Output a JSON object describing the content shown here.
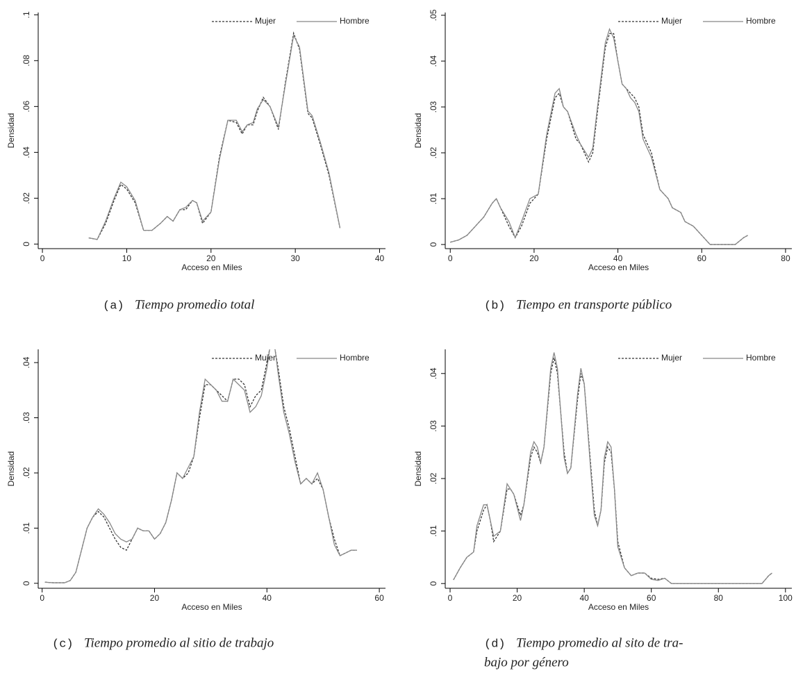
{
  "chart_data": [
    {
      "type": "line",
      "caption_label": "(a)",
      "caption": [
        "Tiempo promedio total"
      ],
      "xlabel": "Acceso en Miles",
      "ylabel": "Densidad",
      "legend": "top-right",
      "grid": false,
      "xlim": [
        -0.5,
        40.7
      ],
      "xticks": [
        0,
        10,
        20,
        30,
        40
      ],
      "ylim": [
        -0.002,
        0.101
      ],
      "yticks": [
        0,
        {
          "value": 0.02,
          "label": ".02"
        },
        {
          "value": 0.04,
          "label": ".04"
        },
        {
          "value": 0.06,
          "label": ".06"
        },
        {
          "value": 0.08,
          "label": ".08"
        },
        {
          "value": 0.1,
          "label": ".1"
        }
      ],
      "x": [
        5.5,
        6.5,
        7.5,
        8.5,
        9.3,
        10,
        11,
        12,
        13,
        14,
        14.8,
        15.5,
        16.3,
        17,
        17.8,
        18.3,
        19,
        20,
        21,
        22,
        23,
        23.7,
        24.3,
        25,
        25.5,
        26.2,
        27,
        28,
        28.8,
        29.8,
        30.5,
        31.5,
        32,
        33,
        34,
        35.3
      ],
      "series": [
        {
          "name": "Mujer",
          "color": "#333333",
          "style": "dashed",
          "values": [
            0.0027,
            0.002,
            0.009,
            0.019,
            0.026,
            0.024,
            0.018,
            0.006,
            0.006,
            0.009,
            0.012,
            0.01,
            0.015,
            0.015,
            0.019,
            0.018,
            0.009,
            0.014,
            0.038,
            0.054,
            0.053,
            0.048,
            0.052,
            0.052,
            0.058,
            0.064,
            0.06,
            0.05,
            0.07,
            0.092,
            0.085,
            0.057,
            0.055,
            0.043,
            0.03,
            0.007
          ]
        },
        {
          "name": "Hombre",
          "color": "#888888",
          "style": "solid",
          "values": [
            0.0027,
            0.002,
            0.01,
            0.02,
            0.027,
            0.025,
            0.019,
            0.006,
            0.006,
            0.009,
            0.012,
            0.01,
            0.015,
            0.016,
            0.019,
            0.018,
            0.01,
            0.014,
            0.037,
            0.054,
            0.054,
            0.049,
            0.052,
            0.053,
            0.059,
            0.063,
            0.06,
            0.051,
            0.069,
            0.091,
            0.086,
            0.058,
            0.056,
            0.044,
            0.031,
            0.007
          ]
        }
      ]
    },
    {
      "type": "line",
      "caption_label": "(b)",
      "caption": [
        "Tiempo en transporte público"
      ],
      "xlabel": "Acceso en Miles",
      "ylabel": "Densidad",
      "legend": "top-right",
      "grid": false,
      "xlim": [
        -1.2,
        81.5
      ],
      "xticks": [
        0,
        20,
        40,
        60,
        80
      ],
      "ylim": [
        -0.0009,
        0.0506
      ],
      "yticks": [
        0,
        {
          "value": 0.01,
          "label": ".01"
        },
        {
          "value": 0.02,
          "label": ".02"
        },
        {
          "value": 0.03,
          "label": ".03"
        },
        {
          "value": 0.04,
          "label": ".04"
        },
        {
          "value": 0.05,
          "label": ".05"
        }
      ],
      "x": [
        0,
        2,
        4,
        6,
        8,
        10,
        11,
        12,
        14,
        15.5,
        17,
        19,
        21,
        23,
        25,
        26,
        27,
        28,
        30,
        31,
        33,
        34,
        35,
        37,
        38,
        39,
        40,
        41,
        42,
        43,
        44,
        45,
        46,
        48,
        50,
        52,
        53,
        55,
        56,
        58,
        60,
        62,
        68,
        70,
        71
      ],
      "series": [
        {
          "name": "Mujer",
          "color": "#333333",
          "style": "dashed",
          "values": [
            0.0005,
            0.001,
            0.002,
            0.004,
            0.006,
            0.009,
            0.01,
            0.008,
            0.004,
            0.0015,
            0.004,
            0.009,
            0.011,
            0.023,
            0.032,
            0.033,
            0.03,
            0.029,
            0.023,
            0.022,
            0.018,
            0.02,
            0.028,
            0.043,
            0.046,
            0.046,
            0.04,
            0.035,
            0.034,
            0.033,
            0.032,
            0.03,
            0.024,
            0.02,
            0.012,
            0.01,
            0.008,
            0.007,
            0.005,
            0.004,
            0.002,
            0,
            0,
            0.0015,
            0.002
          ]
        },
        {
          "name": "Hombre",
          "color": "#888888",
          "style": "solid",
          "values": [
            0.0005,
            0.001,
            0.002,
            0.004,
            0.006,
            0.009,
            0.01,
            0.008,
            0.005,
            0.0015,
            0.005,
            0.01,
            0.011,
            0.024,
            0.033,
            0.034,
            0.03,
            0.029,
            0.024,
            0.022,
            0.019,
            0.021,
            0.029,
            0.044,
            0.047,
            0.045,
            0.04,
            0.035,
            0.034,
            0.032,
            0.031,
            0.029,
            0.023,
            0.019,
            0.012,
            0.01,
            0.008,
            0.007,
            0.005,
            0.004,
            0.002,
            0,
            0,
            0.0015,
            0.002
          ]
        }
      ]
    },
    {
      "type": "line",
      "caption_label": "(c)",
      "caption": [
        "Tiempo promedio al sitio de trabajo"
      ],
      "xlabel": "Acceso en Miles",
      "ylabel": "Densidad",
      "legend": "top-right",
      "grid": false,
      "xlim": [
        -0.7,
        61.1
      ],
      "xticks": [
        0,
        20,
        40,
        60
      ],
      "ylim": [
        -0.0009,
        0.0424
      ],
      "yticks": [
        0,
        {
          "value": 0.01,
          "label": ".01"
        },
        {
          "value": 0.02,
          "label": ".02"
        },
        {
          "value": 0.03,
          "label": ".03"
        },
        {
          "value": 0.04,
          "label": ".04"
        }
      ],
      "x": [
        0.5,
        2,
        4,
        5,
        6,
        7,
        8,
        9,
        10,
        11,
        12,
        13,
        14,
        15,
        16,
        17,
        18,
        19,
        20,
        21,
        22,
        23,
        24,
        25,
        26,
        27,
        28,
        29,
        30,
        31,
        32,
        33,
        34,
        35,
        36,
        37,
        38,
        39,
        40,
        41,
        42,
        43,
        44,
        45,
        46,
        47,
        48,
        49,
        50,
        51,
        52,
        53,
        54,
        55,
        56
      ],
      "series": [
        {
          "name": "Mujer",
          "color": "#333333",
          "style": "dashed",
          "values": [
            0.0002,
            0.0001,
            0.0001,
            0.0005,
            0.002,
            0.006,
            0.01,
            0.012,
            0.013,
            0.012,
            0.01,
            0.008,
            0.0065,
            0.006,
            0.008,
            0.01,
            0.0095,
            0.0095,
            0.008,
            0.009,
            0.011,
            0.015,
            0.02,
            0.019,
            0.02,
            0.023,
            0.03,
            0.036,
            0.036,
            0.035,
            0.034,
            0.033,
            0.037,
            0.037,
            0.036,
            0.032,
            0.034,
            0.035,
            0.04,
            0.045,
            0.039,
            0.032,
            0.028,
            0.023,
            0.018,
            0.019,
            0.018,
            0.019,
            0.017,
            0.012,
            0.008,
            0.005,
            0.0055,
            0.006,
            0.006
          ]
        },
        {
          "name": "Hombre",
          "color": "#888888",
          "style": "solid",
          "values": [
            0.0002,
            0.0001,
            0.0001,
            0.0005,
            0.002,
            0.006,
            0.01,
            0.012,
            0.0135,
            0.0125,
            0.011,
            0.009,
            0.008,
            0.0075,
            0.008,
            0.01,
            0.0095,
            0.0095,
            0.008,
            0.009,
            0.011,
            0.015,
            0.02,
            0.019,
            0.021,
            0.023,
            0.031,
            0.037,
            0.036,
            0.035,
            0.033,
            0.033,
            0.037,
            0.036,
            0.035,
            0.031,
            0.032,
            0.034,
            0.039,
            0.046,
            0.038,
            0.031,
            0.027,
            0.022,
            0.018,
            0.019,
            0.018,
            0.02,
            0.017,
            0.012,
            0.007,
            0.005,
            0.0055,
            0.006,
            0.006
          ]
        }
      ]
    },
    {
      "type": "line",
      "caption_label": "(d)",
      "caption": [
        "Tiempo promedio al sito de tra-",
        "bajo por género"
      ],
      "xlabel": "Acceso en Miles",
      "ylabel": "Densidad",
      "legend": "top-right",
      "grid": false,
      "xlim": [
        -1.45,
        101.9
      ],
      "xticks": [
        0,
        20,
        40,
        60,
        80,
        100
      ],
      "ylim": [
        -0.0009,
        0.0446
      ],
      "yticks": [
        0,
        {
          "value": 0.01,
          "label": ".01"
        },
        {
          "value": 0.02,
          "label": ".02"
        },
        {
          "value": 0.03,
          "label": ".03"
        },
        {
          "value": 0.04,
          "label": ".04"
        }
      ],
      "x": [
        1,
        3,
        5,
        7,
        8,
        10,
        11,
        12,
        13,
        15,
        17,
        18,
        19,
        21,
        22,
        24,
        25,
        26,
        27,
        28,
        30,
        31,
        32,
        34,
        35,
        36,
        38,
        39,
        40,
        42,
        43,
        44,
        45,
        46,
        47,
        48,
        49,
        50,
        52,
        54,
        56,
        58,
        60,
        62,
        64,
        66,
        80,
        93,
        95,
        96
      ],
      "series": [
        {
          "name": "Mujer",
          "color": "#333333",
          "style": "dashed",
          "values": [
            0.0007,
            0.003,
            0.005,
            0.006,
            0.01,
            0.014,
            0.015,
            0.012,
            0.008,
            0.01,
            0.018,
            0.018,
            0.017,
            0.013,
            0.015,
            0.024,
            0.026,
            0.025,
            0.023,
            0.026,
            0.04,
            0.043,
            0.04,
            0.025,
            0.021,
            0.022,
            0.035,
            0.04,
            0.038,
            0.022,
            0.014,
            0.011,
            0.014,
            0.023,
            0.026,
            0.025,
            0.018,
            0.008,
            0.003,
            0.0015,
            0.002,
            0.002,
            0.001,
            0.0008,
            0.001,
            0,
            0,
            0,
            0.0015,
            0.002
          ]
        },
        {
          "name": "Hombre",
          "color": "#888888",
          "style": "solid",
          "values": [
            0.0007,
            0.003,
            0.005,
            0.006,
            0.011,
            0.015,
            0.015,
            0.012,
            0.009,
            0.01,
            0.019,
            0.018,
            0.017,
            0.012,
            0.015,
            0.025,
            0.027,
            0.026,
            0.023,
            0.026,
            0.041,
            0.044,
            0.041,
            0.024,
            0.021,
            0.022,
            0.036,
            0.041,
            0.038,
            0.021,
            0.013,
            0.011,
            0.014,
            0.024,
            0.027,
            0.026,
            0.018,
            0.007,
            0.003,
            0.0015,
            0.002,
            0.002,
            0.0008,
            0.0006,
            0.001,
            0,
            0,
            0,
            0.0015,
            0.002
          ]
        }
      ]
    }
  ]
}
